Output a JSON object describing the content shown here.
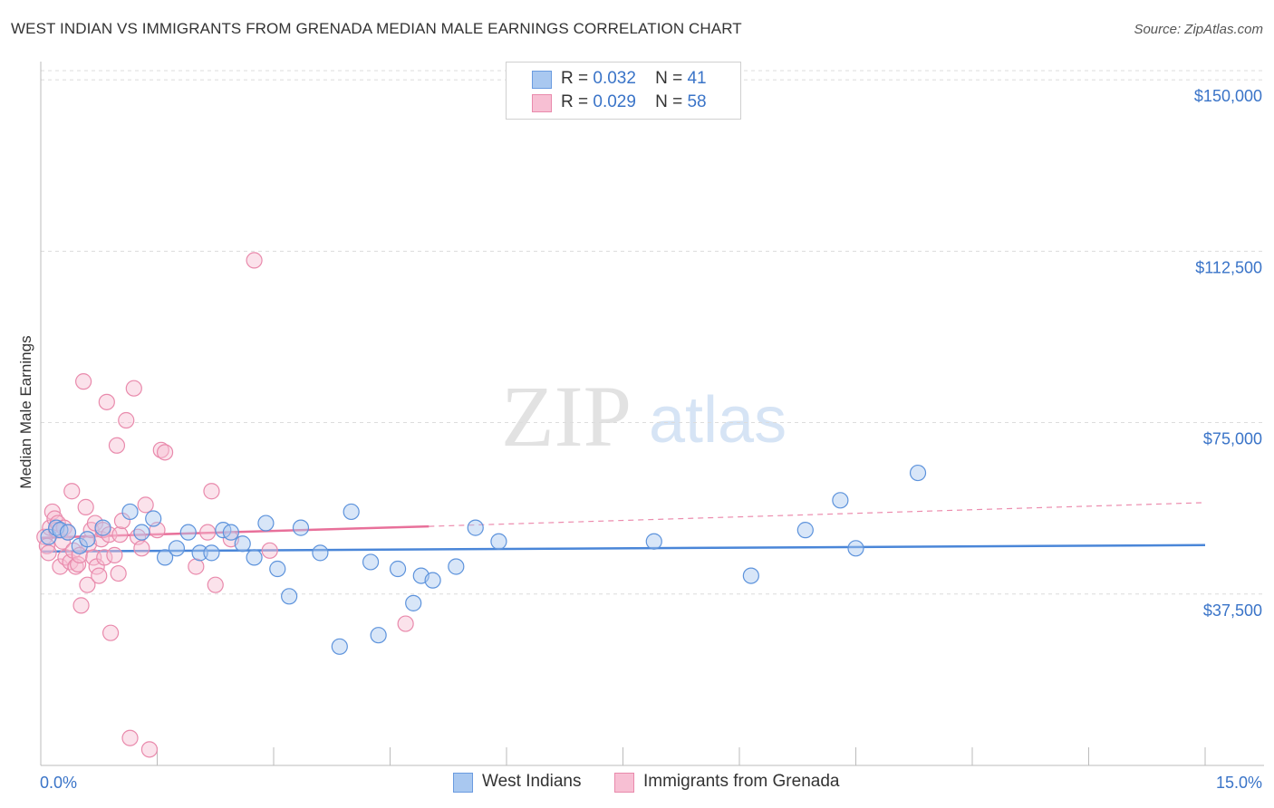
{
  "title": "WEST INDIAN VS IMMIGRANTS FROM GRENADA MEDIAN MALE EARNINGS CORRELATION CHART",
  "source": "Source: ZipAtlas.com",
  "watermark": {
    "zip": "ZIP",
    "atlas": "atlas"
  },
  "legend": {
    "r_label": "R =",
    "n_label": "N =",
    "rows": [
      {
        "r": "0.032",
        "n": "41",
        "color": "#a9c8f0",
        "border": "#6a9be0"
      },
      {
        "r": "0.029",
        "n": "58",
        "color": "#f7bfd3",
        "border": "#e98aac"
      }
    ]
  },
  "bottom_legend": [
    {
      "label": "West Indians",
      "color": "#a9c8f0",
      "border": "#6a9be0"
    },
    {
      "label": "Immigrants from Grenada",
      "color": "#f7bfd3",
      "border": "#e98aac"
    }
  ],
  "chart_data": {
    "type": "scatter",
    "title": "WEST INDIAN VS IMMIGRANTS FROM GRENADA MEDIAN MALE EARNINGS CORRELATION CHART",
    "xlabel": "",
    "ylabel": "Median Male Earnings",
    "xlim": [
      0,
      15
    ],
    "ylim": [
      0,
      152000
    ],
    "x_tick_labels": [
      "0.0%",
      "15.0%"
    ],
    "y_ticks": [
      37500,
      75000,
      112500,
      150000
    ],
    "y_tick_labels": [
      "$37,500",
      "$75,000",
      "$112,500",
      "$150,000"
    ],
    "colors": {
      "blue": "#4a86d8",
      "pink": "#e8709a"
    },
    "series": [
      {
        "name": "West Indians",
        "r": 0.032,
        "n": 41,
        "trend": {
          "x0": 0,
          "y0": 46800,
          "x1": 15,
          "y1": 48200
        },
        "points": [
          [
            0.1,
            50000
          ],
          [
            0.2,
            52000
          ],
          [
            0.25,
            51500
          ],
          [
            0.35,
            51000
          ],
          [
            0.5,
            48000
          ],
          [
            0.6,
            49500
          ],
          [
            0.8,
            52000
          ],
          [
            1.15,
            55500
          ],
          [
            1.3,
            51000
          ],
          [
            1.45,
            54000
          ],
          [
            1.6,
            45500
          ],
          [
            1.75,
            47500
          ],
          [
            1.9,
            51000
          ],
          [
            2.05,
            46500
          ],
          [
            2.2,
            46500
          ],
          [
            2.35,
            51500
          ],
          [
            2.45,
            51000
          ],
          [
            2.6,
            48500
          ],
          [
            2.75,
            45500
          ],
          [
            2.9,
            53000
          ],
          [
            3.05,
            43000
          ],
          [
            3.2,
            37000
          ],
          [
            3.35,
            52000
          ],
          [
            3.6,
            46500
          ],
          [
            3.85,
            26000
          ],
          [
            4.0,
            55500
          ],
          [
            4.25,
            44500
          ],
          [
            4.35,
            28500
          ],
          [
            4.6,
            43000
          ],
          [
            4.8,
            35500
          ],
          [
            4.9,
            41500
          ],
          [
            5.05,
            40500
          ],
          [
            5.35,
            43500
          ],
          [
            5.6,
            52000
          ],
          [
            5.9,
            49000
          ],
          [
            7.9,
            49000
          ],
          [
            9.15,
            41500
          ],
          [
            9.85,
            51500
          ],
          [
            10.3,
            58000
          ],
          [
            10.5,
            47500
          ],
          [
            11.3,
            64000
          ]
        ]
      },
      {
        "name": "Immigrants from Grenada",
        "r": 0.029,
        "n": 58,
        "trend": {
          "x0": 0,
          "y0": 49800,
          "x1": 5.0,
          "y1": 52300
        },
        "trend_dashed": {
          "x0": 5.0,
          "y0": 52300,
          "x1": 15,
          "y1": 57500
        },
        "points": [
          [
            0.05,
            50000
          ],
          [
            0.08,
            48000
          ],
          [
            0.1,
            46500
          ],
          [
            0.12,
            52000
          ],
          [
            0.15,
            55500
          ],
          [
            0.18,
            54000
          ],
          [
            0.2,
            51500
          ],
          [
            0.22,
            53000
          ],
          [
            0.25,
            43500
          ],
          [
            0.28,
            49000
          ],
          [
            0.3,
            52000
          ],
          [
            0.32,
            45500
          ],
          [
            0.35,
            51000
          ],
          [
            0.38,
            44500
          ],
          [
            0.4,
            60000
          ],
          [
            0.42,
            47000
          ],
          [
            0.45,
            43500
          ],
          [
            0.48,
            44000
          ],
          [
            0.5,
            46000
          ],
          [
            0.52,
            35000
          ],
          [
            0.55,
            84000
          ],
          [
            0.58,
            56500
          ],
          [
            0.6,
            39500
          ],
          [
            0.62,
            48500
          ],
          [
            0.65,
            51500
          ],
          [
            0.68,
            45500
          ],
          [
            0.7,
            53000
          ],
          [
            0.72,
            43500
          ],
          [
            0.75,
            41500
          ],
          [
            0.78,
            49500
          ],
          [
            0.8,
            51500
          ],
          [
            0.82,
            45500
          ],
          [
            0.85,
            79500
          ],
          [
            0.88,
            50500
          ],
          [
            0.9,
            29000
          ],
          [
            0.95,
            46000
          ],
          [
            0.98,
            70000
          ],
          [
            1.0,
            42000
          ],
          [
            1.02,
            50500
          ],
          [
            1.05,
            53500
          ],
          [
            1.1,
            75500
          ],
          [
            1.15,
            6000
          ],
          [
            1.2,
            82500
          ],
          [
            1.25,
            50000
          ],
          [
            1.3,
            47500
          ],
          [
            1.35,
            57000
          ],
          [
            1.4,
            3500
          ],
          [
            1.5,
            51500
          ],
          [
            1.55,
            69000
          ],
          [
            1.6,
            68500
          ],
          [
            2.0,
            43500
          ],
          [
            2.15,
            51000
          ],
          [
            2.2,
            60000
          ],
          [
            2.25,
            39500
          ],
          [
            2.45,
            49500
          ],
          [
            2.75,
            110500
          ],
          [
            2.95,
            47000
          ],
          [
            4.7,
            31000
          ]
        ]
      }
    ]
  }
}
